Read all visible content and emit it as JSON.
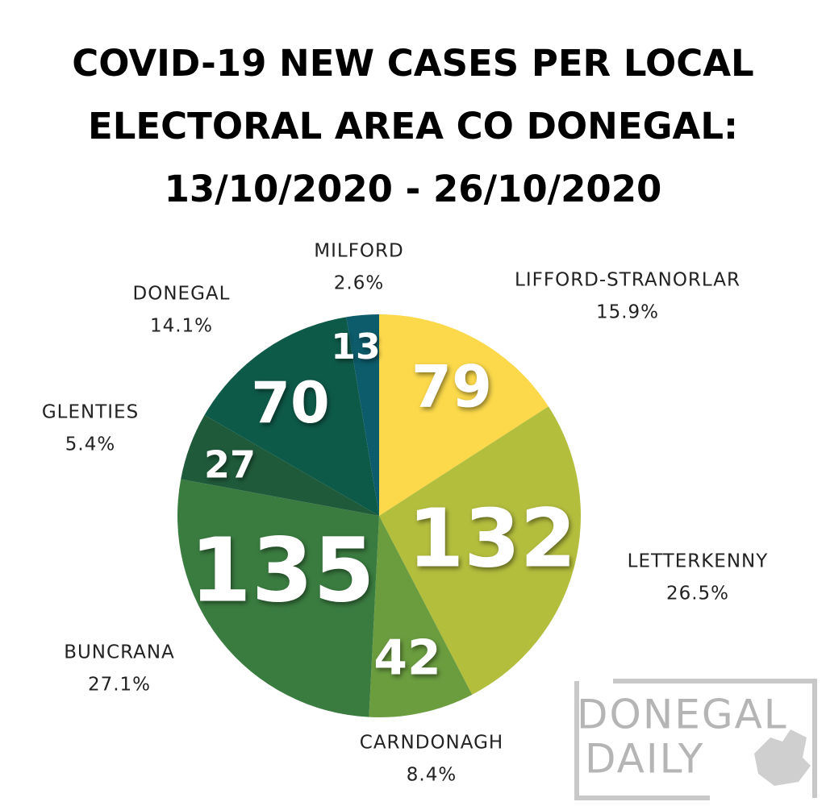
{
  "chart_data": {
    "type": "pie",
    "title_lines": [
      "COVID-19 NEW CASES PER LOCAL",
      "ELECTORAL AREA CO DONEGAL:",
      "13/10/2020 - 26/10/2020"
    ],
    "categories": [
      "LIFFORD-STRANORLAR",
      "LETTERKENNY",
      "CARNDONAGH",
      "BUNCRANA",
      "GLENTIES",
      "DONEGAL",
      "MILFORD"
    ],
    "values": [
      79,
      132,
      42,
      135,
      27,
      70,
      13
    ],
    "percent_labels": [
      "15.9%",
      "26.5%",
      "8.4%",
      "27.1%",
      "5.4%",
      "14.1%",
      "2.6%"
    ],
    "colors": [
      "#fbd94b",
      "#b4be3d",
      "#6b9d3f",
      "#3a7c40",
      "#1f5b3b",
      "#0e5a49",
      "#0d5c6b"
    ],
    "logo": [
      "DONEGAL",
      "DAILY"
    ]
  }
}
